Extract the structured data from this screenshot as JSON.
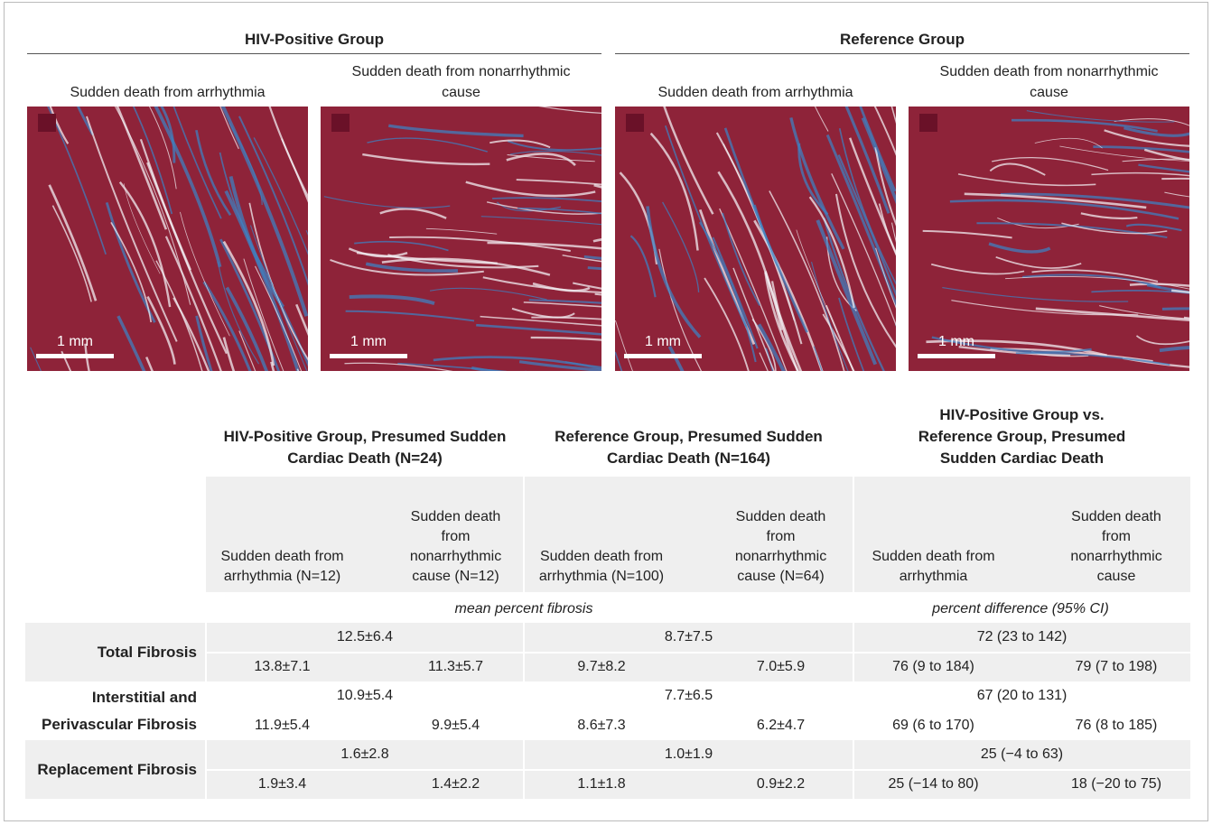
{
  "panels": {
    "groups": [
      {
        "title": "HIV-Positive Group",
        "images": [
          {
            "caption": "Sudden death from arrhythmia",
            "scale": "1 mm"
          },
          {
            "caption": "Sudden death from nonarrhythmic cause",
            "scale": "1 mm"
          }
        ]
      },
      {
        "title": "Reference Group",
        "images": [
          {
            "caption": "Sudden death from arrhythmia",
            "scale": "1 mm"
          },
          {
            "caption": "Sudden death from nonarrhythmic cause",
            "scale": "1 mm"
          }
        ]
      }
    ]
  },
  "table": {
    "column_groups": [
      {
        "title": "HIV-Positive Group, Presumed Sudden Cardiac Death (N=24)",
        "columns": [
          "Sudden death from arrhythmia (N=12)",
          "Sudden death from nonarrhythmic cause (N=12)"
        ]
      },
      {
        "title": "Reference Group, Presumed Sudden Cardiac Death (N=164)",
        "columns": [
          "Sudden death from arrhythmia (N=100)",
          "Sudden death from nonarrhythmic cause (N=64)"
        ]
      },
      {
        "title": "HIV-Positive Group vs. Reference Group, Presumed Sudden Cardiac Death",
        "columns": [
          "Sudden death from arrhythmia",
          "Sudden death from nonarrhythmic cause"
        ]
      }
    ],
    "units": [
      "mean percent fibrosis",
      "percent difference (95% CI)"
    ],
    "rows": [
      {
        "label": "Total Fibrosis",
        "overall": [
          "12.5±6.4",
          "8.7±7.5",
          "72 (23 to 142)"
        ],
        "by_cause": [
          "13.8±7.1",
          "11.3±5.7",
          "9.7±8.2",
          "7.0±5.9",
          "76 (9 to 184)",
          "79 (7 to 198)"
        ]
      },
      {
        "label": "Interstitial and Perivascular Fibrosis",
        "overall": [
          "10.9±5.4",
          "7.7±6.5",
          "67 (20 to 131)"
        ],
        "by_cause": [
          "11.9±5.4",
          "9.9±5.4",
          "8.6±7.3",
          "6.2±4.7",
          "69 (6 to 170)",
          "76 (8 to 185)"
        ]
      },
      {
        "label": "Replacement Fibrosis",
        "overall": [
          "1.6±2.8",
          "1.0±1.9",
          "25 (−4 to 63)"
        ],
        "by_cause": [
          "1.9±3.4",
          "1.4±2.2",
          "1.1±1.8",
          "0.9±2.2",
          "25 (−14 to 80)",
          "18 (−20 to 75)"
        ]
      }
    ]
  }
}
